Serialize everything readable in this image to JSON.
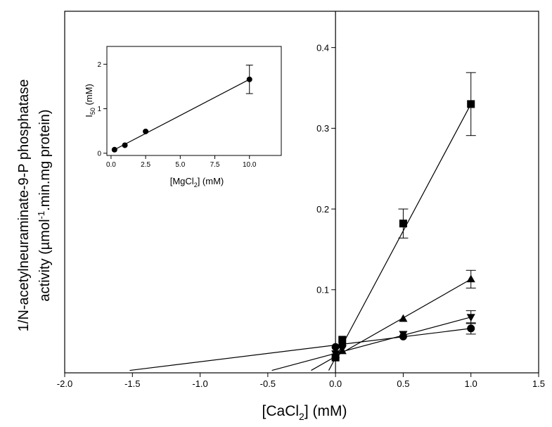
{
  "chart_data": [
    {
      "id": "main",
      "type": "line",
      "xlabel": {
        "text": "[CaCl",
        "sub": "2",
        "after": "] (mM)"
      },
      "ylabel": {
        "line1": "1/N-acetylneuraminate-9-P phosphatase",
        "line2_before": "activity (µmol",
        "line2_sup": "-1",
        "line2_after": ".min.mg protein)"
      },
      "xlim": [
        -2.0,
        1.5
      ],
      "ylim": [
        -0.003,
        0.445
      ],
      "xticks": [
        -2.0,
        -1.5,
        -1.0,
        -0.5,
        0.0,
        0.5,
        1.0,
        1.5
      ],
      "xtick_labels": [
        "-2.0",
        "-1.5",
        "-1.0",
        "-0.5",
        "0.0",
        "0.5",
        "1.0",
        "1.5"
      ],
      "yticks": [
        0.1,
        0.2,
        0.3,
        0.4
      ],
      "ytick_labels": [
        "0.1",
        "0.2",
        "0.3",
        "0.4"
      ],
      "series": [
        {
          "marker": "square",
          "x": [
            0.0,
            0.05,
            0.5,
            1.0
          ],
          "y": [
            0.016,
            0.038,
            0.182,
            0.33
          ],
          "err": [
            0,
            0,
            0.018,
            0.039
          ],
          "line": [
            [
              -0.05,
              0.0
            ],
            [
              1.0,
              0.33
            ]
          ]
        },
        {
          "marker": "triangle-up",
          "x": [
            0.0,
            0.05,
            0.5,
            1.0
          ],
          "y": [
            0.019,
            0.024,
            0.064,
            0.113
          ],
          "err": [
            0,
            0,
            0,
            0.011
          ],
          "line": [
            [
              -0.18,
              0.0
            ],
            [
              1.0,
              0.113
            ]
          ]
        },
        {
          "marker": "triangle-down",
          "x": [
            0.0,
            0.05,
            0.5,
            1.0
          ],
          "y": [
            0.021,
            0.027,
            0.045,
            0.066
          ],
          "err": [
            0,
            0,
            0,
            0.008
          ],
          "line": [
            [
              -0.47,
              0.0
            ],
            [
              1.0,
              0.066
            ]
          ]
        },
        {
          "marker": "circle",
          "x": [
            0.0,
            0.05,
            0.5,
            1.0
          ],
          "y": [
            0.029,
            0.031,
            0.042,
            0.052
          ],
          "err": [
            0,
            0,
            0,
            0.007
          ],
          "line": [
            [
              -1.52,
              0.0
            ],
            [
              1.0,
              0.052
            ]
          ]
        }
      ]
    },
    {
      "id": "inset",
      "type": "line",
      "xlabel": {
        "text": "[MgCl",
        "sub": "2",
        "after": "] (mM)"
      },
      "ylabel": {
        "text": "I",
        "sub": "50",
        "after": " (mM)"
      },
      "xlim": [
        -0.3,
        12.3
      ],
      "ylim": [
        -0.05,
        2.4
      ],
      "xticks": [
        0.0,
        2.5,
        5.0,
        7.5,
        10.0
      ],
      "xtick_labels": [
        "0.0",
        "2.5",
        "5.0",
        "7.5",
        "10.0"
      ],
      "yticks": [
        0,
        1,
        2
      ],
      "ytick_labels": [
        "0",
        "1",
        "2"
      ],
      "series": [
        {
          "marker": "circle",
          "x": [
            0.25,
            1.0,
            2.5,
            10.0
          ],
          "y": [
            0.08,
            0.18,
            0.49,
            1.66
          ],
          "err": [
            0,
            0,
            0,
            0.32
          ],
          "line": [
            [
              0.25,
              0.08
            ],
            [
              10.0,
              1.66
            ]
          ]
        }
      ]
    }
  ]
}
